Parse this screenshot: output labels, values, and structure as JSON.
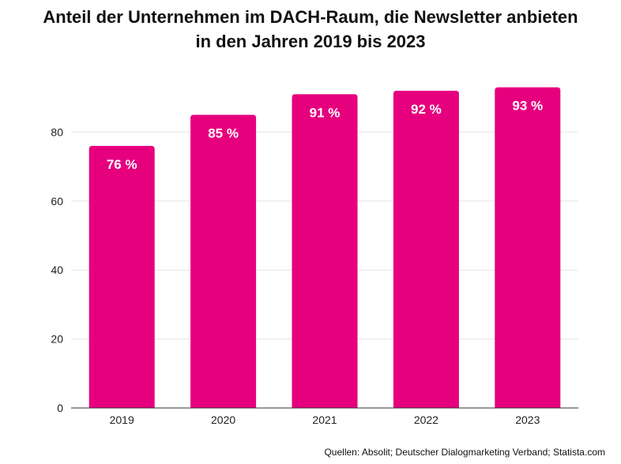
{
  "chart_data": {
    "type": "bar",
    "title": [
      "Anteil der Unternehmen im DACH-Raum, die Newsletter anbieten",
      "in den Jahren 2019 bis 2023"
    ],
    "categories": [
      "2019",
      "2020",
      "2021",
      "2022",
      "2023"
    ],
    "values": [
      76,
      85,
      91,
      92,
      93
    ],
    "data_labels": [
      "76 %",
      "85 %",
      "91 %",
      "92 %",
      "93 %"
    ],
    "yticks": [
      "0",
      "20",
      "40",
      "60",
      "80"
    ],
    "ytick_values": [
      0,
      20,
      40,
      60,
      80
    ],
    "ylim": [
      0,
      100
    ],
    "xlabel": "",
    "ylabel": "",
    "grid": true,
    "bar_color": "#e6007e",
    "grid_color": "#e6e6e6",
    "source": "Quellen: Absolit; Deutscher Dialogmarketing Verband; Statista.com"
  }
}
